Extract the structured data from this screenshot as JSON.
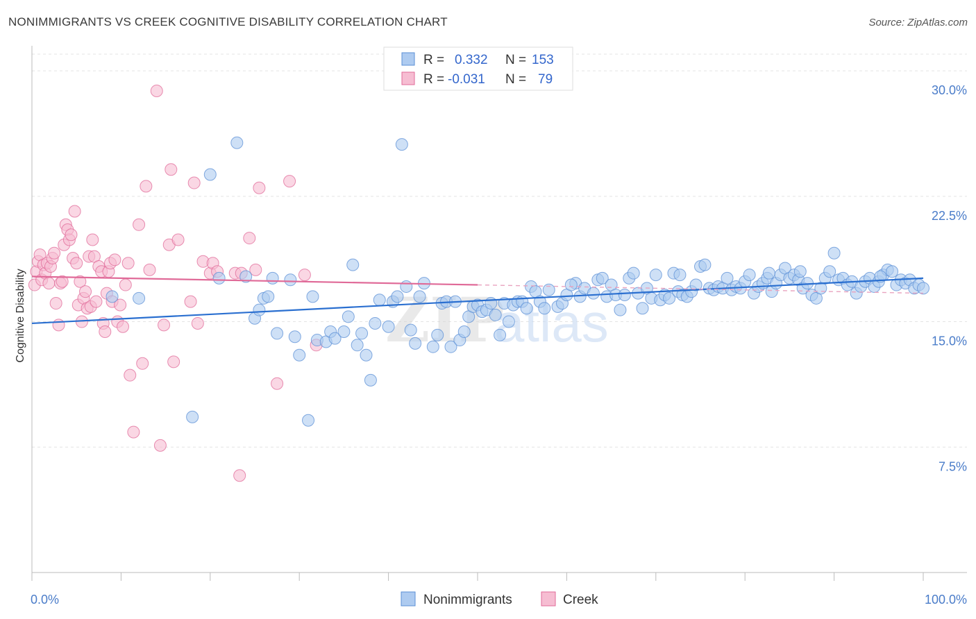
{
  "title": "NONIMMIGRANTS VS CREEK COGNITIVE DISABILITY CORRELATION CHART",
  "source": "Source: ZipAtlas.com",
  "chart_data": {
    "type": "scatter",
    "title": "NONIMMIGRANTS VS CREEK COGNITIVE DISABILITY CORRELATION CHART",
    "xlabel": "",
    "ylabel": "Cognitive Disability",
    "xlim": [
      0,
      100
    ],
    "ylim": [
      0,
      31
    ],
    "x_tick_labels": [
      "0.0%",
      "100.0%"
    ],
    "y_ticks": [
      7.5,
      15.0,
      22.5,
      30.0
    ],
    "y_tick_labels": [
      "7.5%",
      "15.0%",
      "22.5%",
      "30.0%"
    ],
    "grid": true,
    "legend_placement": "top-center",
    "watermark": "ZIPatlas",
    "series": [
      {
        "name": "Nonimmigrants",
        "color": "#5b8fd6",
        "fill": "#aecbf0",
        "R": "0.332",
        "N": "153",
        "trend": {
          "x0": 0,
          "y0": 14.9,
          "x1": 100,
          "y1": 17.6
        },
        "points": [
          [
            9,
            16.5
          ],
          [
            12,
            16.4
          ],
          [
            18,
            9.3
          ],
          [
            20,
            23.8
          ],
          [
            21,
            17.6
          ],
          [
            23,
            25.7
          ],
          [
            24,
            17.7
          ],
          [
            25,
            15.2
          ],
          [
            25.5,
            15.7
          ],
          [
            26,
            16.4
          ],
          [
            26.5,
            16.5
          ],
          [
            27,
            17.6
          ],
          [
            27.5,
            14.3
          ],
          [
            29,
            17.5
          ],
          [
            29.5,
            14.1
          ],
          [
            30,
            13.0
          ],
          [
            31,
            9.1
          ],
          [
            31.5,
            16.5
          ],
          [
            32,
            13.9
          ],
          [
            33,
            13.8
          ],
          [
            33.5,
            14.4
          ],
          [
            34,
            14.0
          ],
          [
            35,
            14.4
          ],
          [
            35.5,
            15.3
          ],
          [
            36,
            18.4
          ],
          [
            36.5,
            13.6
          ],
          [
            37,
            14.3
          ],
          [
            37.5,
            13.0
          ],
          [
            38,
            11.5
          ],
          [
            38.5,
            14.9
          ],
          [
            39,
            16.3
          ],
          [
            40,
            14.7
          ],
          [
            40.5,
            16.2
          ],
          [
            41,
            16.5
          ],
          [
            41.5,
            25.6
          ],
          [
            42,
            17.1
          ],
          [
            42.5,
            14.5
          ],
          [
            43,
            13.7
          ],
          [
            43.5,
            16.5
          ],
          [
            44,
            17.3
          ],
          [
            45,
            13.5
          ],
          [
            45.5,
            14.2
          ],
          [
            46,
            16.1
          ],
          [
            46.5,
            16.2
          ],
          [
            47,
            13.5
          ],
          [
            47.5,
            16.2
          ],
          [
            48,
            13.9
          ],
          [
            48.5,
            14.4
          ],
          [
            49,
            15.3
          ],
          [
            49.5,
            15.9
          ],
          [
            50,
            16.0
          ],
          [
            50.5,
            15.6
          ],
          [
            51,
            15.7
          ],
          [
            51.5,
            16.1
          ],
          [
            52,
            15.4
          ],
          [
            52.5,
            14.2
          ],
          [
            53,
            16.1
          ],
          [
            53.5,
            15.0
          ],
          [
            54,
            16.0
          ],
          [
            54.5,
            16.2
          ],
          [
            55,
            16.2
          ],
          [
            55.5,
            15.8
          ],
          [
            56,
            17.1
          ],
          [
            56.5,
            16.8
          ],
          [
            57,
            16.2
          ],
          [
            57.5,
            15.8
          ],
          [
            58,
            16.9
          ],
          [
            59,
            15.9
          ],
          [
            59.5,
            16.1
          ],
          [
            60,
            16.6
          ],
          [
            61,
            17.3
          ],
          [
            61.5,
            16.5
          ],
          [
            62,
            17.0
          ],
          [
            63,
            16.7
          ],
          [
            63.5,
            17.5
          ],
          [
            64,
            17.6
          ],
          [
            64.5,
            16.5
          ],
          [
            65,
            17.2
          ],
          [
            65.5,
            16.6
          ],
          [
            66,
            15.7
          ],
          [
            66.5,
            16.6
          ],
          [
            67,
            17.6
          ],
          [
            67.5,
            17.9
          ],
          [
            68,
            16.7
          ],
          [
            68.5,
            15.8
          ],
          [
            69,
            17.0
          ],
          [
            69.5,
            16.4
          ],
          [
            70,
            17.8
          ],
          [
            70.5,
            16.3
          ],
          [
            71,
            16.6
          ],
          [
            71.5,
            16.4
          ],
          [
            72,
            17.9
          ],
          [
            72.5,
            16.8
          ],
          [
            73,
            16.6
          ],
          [
            73.5,
            16.5
          ],
          [
            74,
            16.8
          ],
          [
            74.5,
            17.2
          ],
          [
            75,
            18.3
          ],
          [
            75.5,
            18.4
          ],
          [
            76,
            17.0
          ],
          [
            76.5,
            16.9
          ],
          [
            77,
            17.1
          ],
          [
            77.5,
            17.0
          ],
          [
            78,
            17.6
          ],
          [
            78.5,
            16.9
          ],
          [
            79,
            17.1
          ],
          [
            79.5,
            17.0
          ],
          [
            80,
            17.4
          ],
          [
            80.5,
            17.8
          ],
          [
            81,
            16.7
          ],
          [
            81.5,
            17.1
          ],
          [
            82,
            17.3
          ],
          [
            82.5,
            17.6
          ],
          [
            83,
            16.8
          ],
          [
            83.5,
            17.3
          ],
          [
            84,
            17.8
          ],
          [
            84.5,
            18.2
          ],
          [
            85,
            17.6
          ],
          [
            85.5,
            17.8
          ],
          [
            86,
            17.5
          ],
          [
            86.5,
            17.0
          ],
          [
            87,
            17.3
          ],
          [
            87.5,
            16.6
          ],
          [
            88,
            16.4
          ],
          [
            88.5,
            17.0
          ],
          [
            89,
            17.6
          ],
          [
            89.5,
            18.0
          ],
          [
            90,
            19.1
          ],
          [
            90.5,
            17.5
          ],
          [
            91,
            17.6
          ],
          [
            91.5,
            17.2
          ],
          [
            92,
            17.4
          ],
          [
            92.5,
            16.7
          ],
          [
            93,
            17.1
          ],
          [
            93.5,
            17.4
          ],
          [
            94,
            17.6
          ],
          [
            94.5,
            17.1
          ],
          [
            95,
            17.4
          ],
          [
            95.5,
            17.8
          ],
          [
            96,
            18.1
          ],
          [
            96.5,
            18.0
          ],
          [
            97,
            17.2
          ],
          [
            97.5,
            17.5
          ],
          [
            98,
            17.3
          ],
          [
            98.5,
            17.5
          ],
          [
            99,
            17.0
          ],
          [
            99.5,
            17.2
          ],
          [
            100,
            17.0
          ],
          [
            60.5,
            17.2
          ],
          [
            72.7,
            17.8
          ],
          [
            86.2,
            18.0
          ],
          [
            95.2,
            17.7
          ],
          [
            82.7,
            17.9
          ]
        ]
      },
      {
        "name": "Creek",
        "color": "#e06a98",
        "fill": "#f6bdd2",
        "R": "-0.031",
        "N": "79",
        "trend": {
          "x0": 0,
          "y0": 17.7,
          "x1": 50,
          "y1": 17.2
        },
        "trend_ext": {
          "x0": 50,
          "y0": 17.2,
          "x1": 100,
          "y1": 16.7
        },
        "points": [
          [
            0.3,
            17.2
          ],
          [
            0.5,
            18.0
          ],
          [
            0.7,
            18.6
          ],
          [
            0.9,
            19.0
          ],
          [
            1.1,
            17.5
          ],
          [
            1.3,
            18.4
          ],
          [
            1.5,
            17.9
          ],
          [
            1.7,
            18.5
          ],
          [
            1.9,
            17.3
          ],
          [
            2.1,
            18.3
          ],
          [
            2.3,
            18.8
          ],
          [
            2.5,
            19.1
          ],
          [
            2.7,
            16.1
          ],
          [
            3.0,
            14.8
          ],
          [
            3.2,
            17.3
          ],
          [
            3.4,
            17.4
          ],
          [
            3.6,
            19.6
          ],
          [
            3.8,
            20.8
          ],
          [
            4.0,
            20.5
          ],
          [
            4.2,
            19.9
          ],
          [
            4.4,
            20.2
          ],
          [
            4.6,
            18.8
          ],
          [
            4.8,
            21.6
          ],
          [
            5.0,
            18.5
          ],
          [
            5.2,
            16.0
          ],
          [
            5.4,
            17.4
          ],
          [
            5.6,
            15.0
          ],
          [
            5.8,
            16.4
          ],
          [
            6.0,
            16.8
          ],
          [
            6.2,
            15.8
          ],
          [
            6.4,
            18.9
          ],
          [
            6.6,
            15.9
          ],
          [
            6.8,
            19.9
          ],
          [
            7.0,
            18.9
          ],
          [
            7.2,
            16.2
          ],
          [
            7.5,
            18.3
          ],
          [
            7.8,
            18.0
          ],
          [
            8.0,
            14.9
          ],
          [
            8.2,
            14.4
          ],
          [
            8.4,
            16.7
          ],
          [
            8.6,
            18.0
          ],
          [
            8.8,
            18.5
          ],
          [
            9.0,
            16.2
          ],
          [
            9.3,
            18.7
          ],
          [
            9.6,
            15.0
          ],
          [
            9.9,
            16.0
          ],
          [
            10.2,
            14.7
          ],
          [
            10.5,
            17.2
          ],
          [
            10.8,
            18.5
          ],
          [
            11.0,
            11.8
          ],
          [
            11.4,
            8.4
          ],
          [
            12.0,
            20.8
          ],
          [
            12.4,
            12.5
          ],
          [
            12.8,
            23.1
          ],
          [
            13.2,
            18.1
          ],
          [
            14.0,
            28.8
          ],
          [
            14.4,
            7.6
          ],
          [
            14.8,
            14.8
          ],
          [
            15.6,
            24.1
          ],
          [
            15.9,
            12.6
          ],
          [
            15.4,
            19.6
          ],
          [
            16.4,
            19.9
          ],
          [
            17.8,
            16.2
          ],
          [
            18.2,
            23.3
          ],
          [
            18.6,
            14.9
          ],
          [
            19.2,
            18.6
          ],
          [
            20.0,
            17.9
          ],
          [
            20.3,
            18.5
          ],
          [
            20.8,
            18.0
          ],
          [
            22.8,
            17.9
          ],
          [
            23.3,
            5.8
          ],
          [
            23.5,
            17.9
          ],
          [
            24.4,
            20.0
          ],
          [
            25.1,
            18.1
          ],
          [
            25.5,
            23.0
          ],
          [
            27.5,
            11.3
          ],
          [
            28.9,
            23.4
          ],
          [
            30.6,
            17.8
          ],
          [
            31.9,
            13.6
          ]
        ]
      }
    ]
  }
}
